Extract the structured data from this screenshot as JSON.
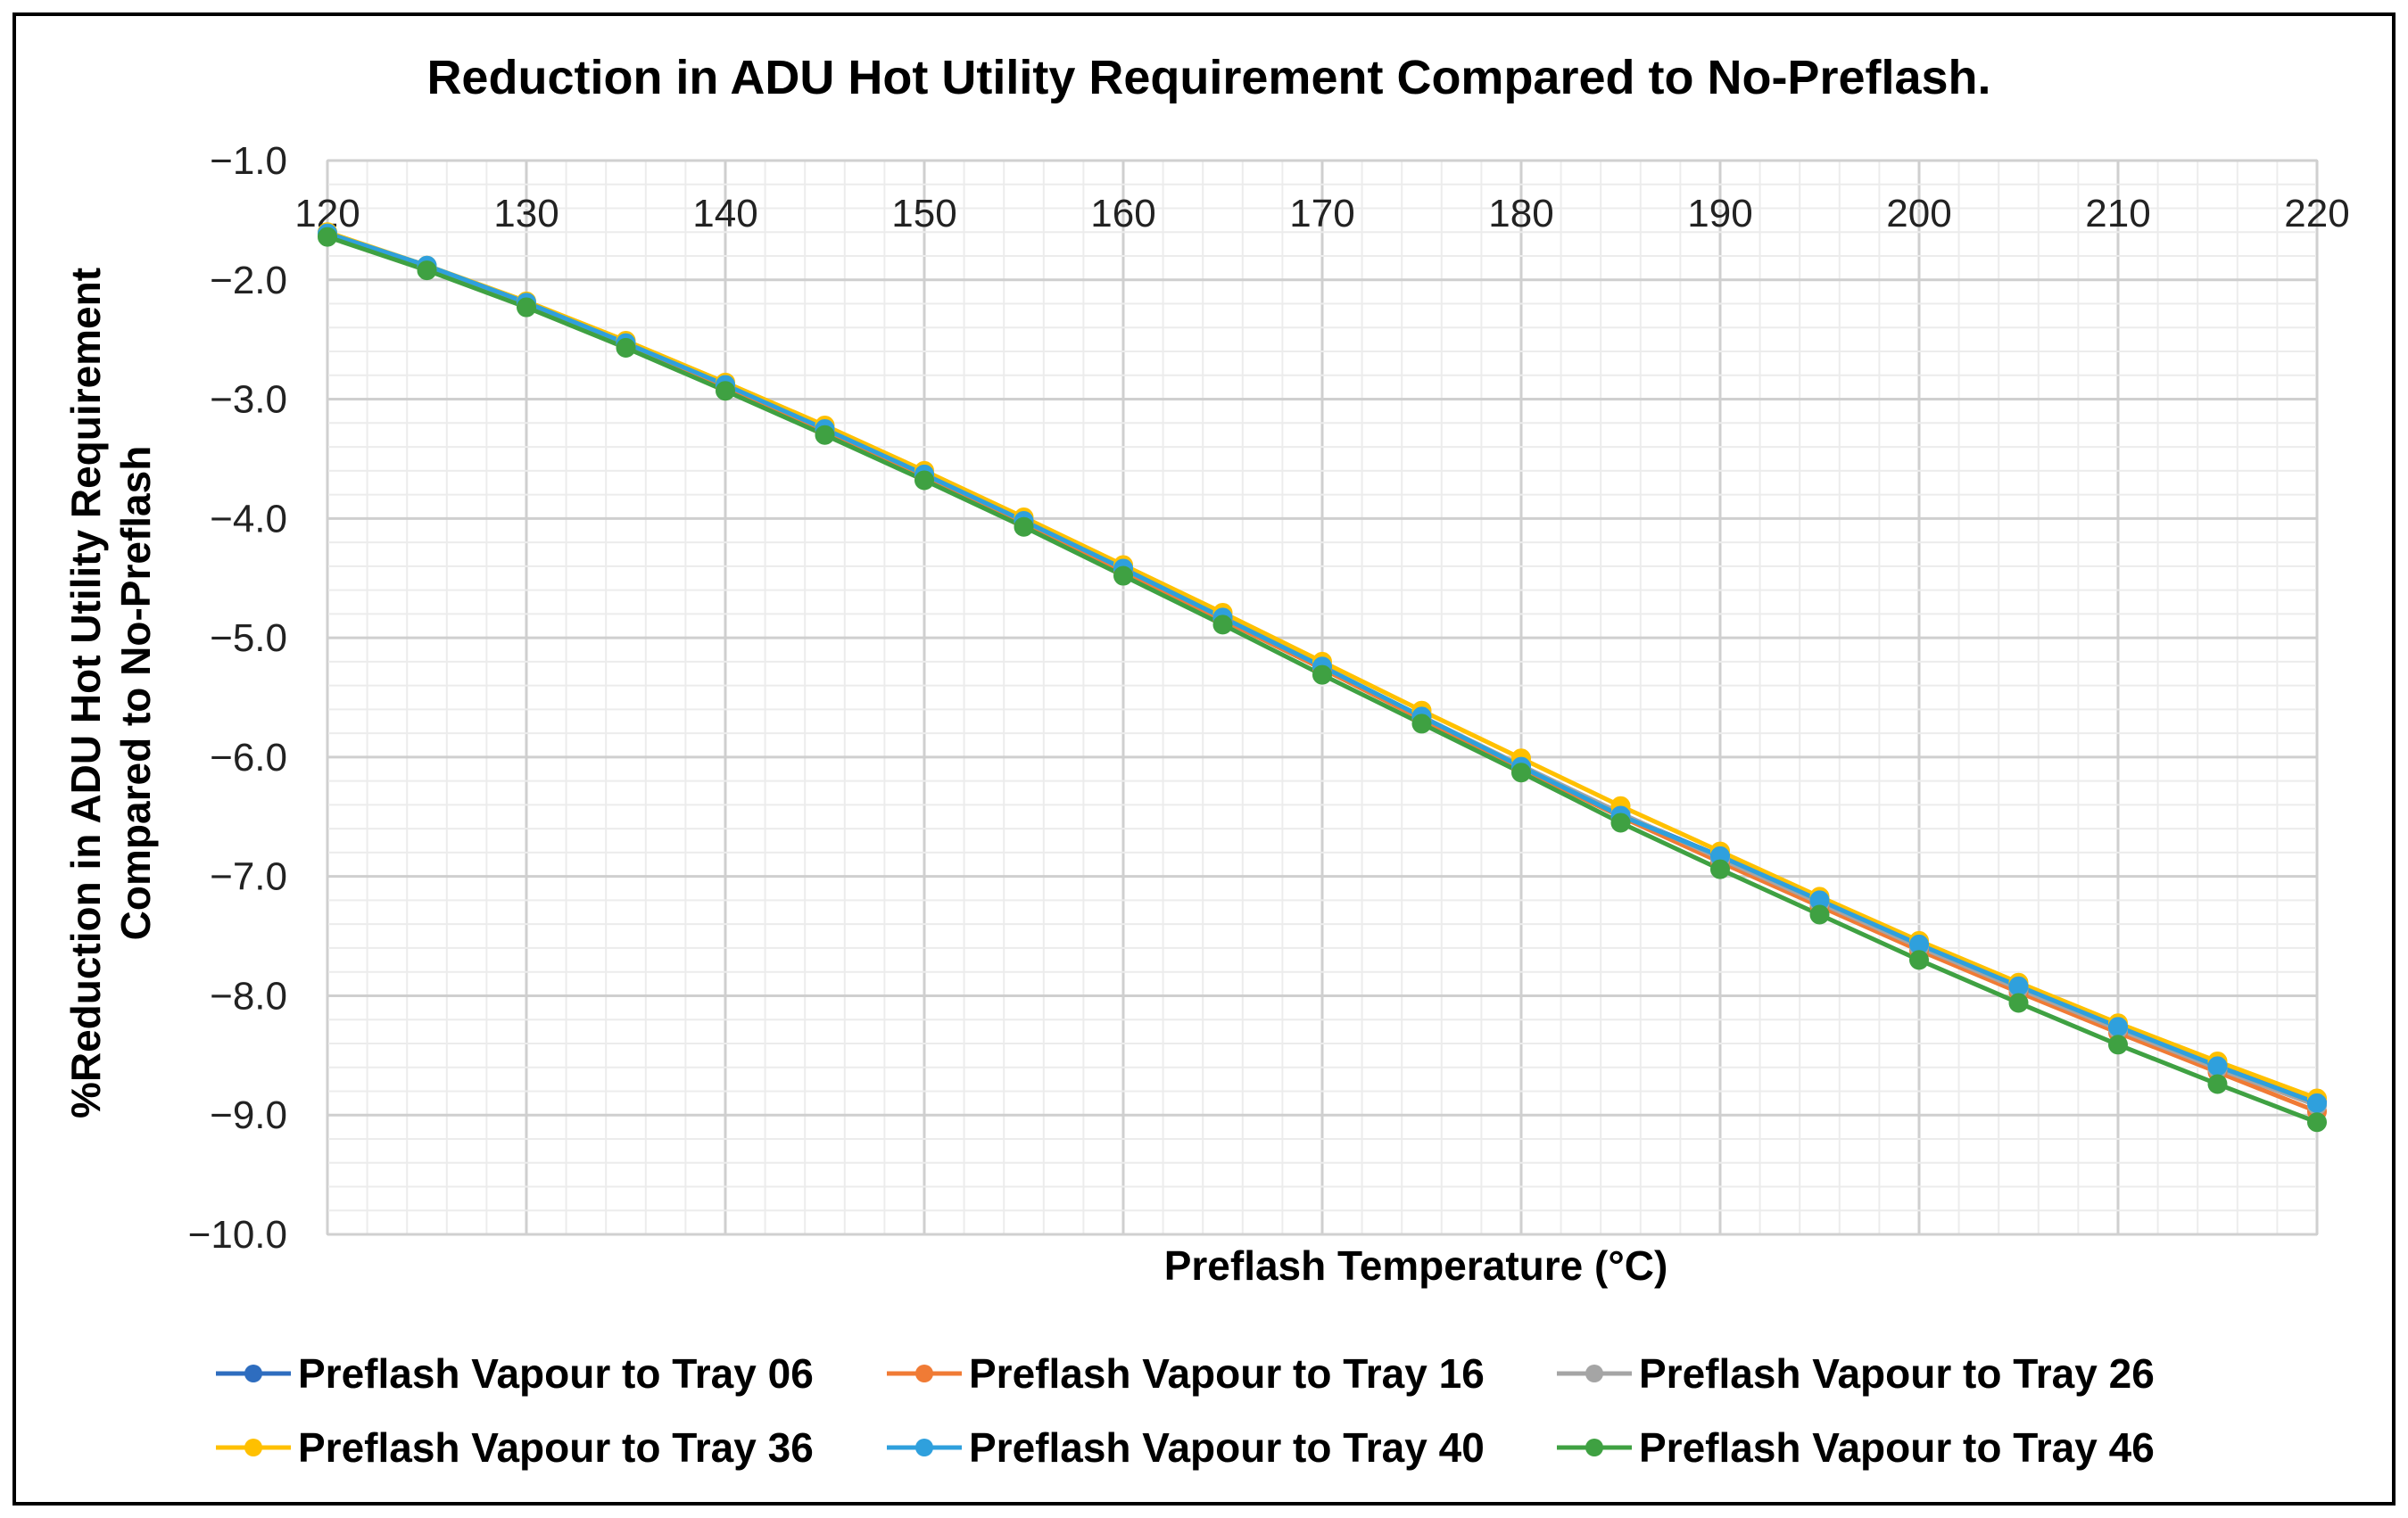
{
  "chart_data": {
    "type": "line",
    "title": "Reduction in ADU Hot Utility Requirement Compared to No-Preflash.",
    "xlabel": "Preflash Temperature (°C)",
    "ylabel_line1": "%Reduction  in ADU Hot Utility Requirement",
    "ylabel_line2": "Compared to No-Preflash",
    "xlim": [
      120,
      220
    ],
    "ylim": [
      -10,
      -1
    ],
    "x_ticks": [
      120,
      130,
      140,
      150,
      160,
      170,
      180,
      190,
      200,
      210,
      220
    ],
    "y_ticks": [
      "−1.0",
      "−2.0",
      "−3.0",
      "−4.0",
      "−5.0",
      "−6.0",
      "−7.0",
      "−8.0",
      "−9.0",
      "−10.0"
    ],
    "y_tick_values": [
      -1,
      -2,
      -3,
      -4,
      -5,
      -6,
      -7,
      -8,
      -9,
      -10
    ],
    "grid": true,
    "legend_position": "bottom",
    "x": [
      120,
      125,
      130,
      135,
      140,
      145,
      150,
      155,
      160,
      165,
      170,
      175,
      180,
      185,
      190,
      195,
      200,
      205,
      210,
      215,
      220
    ],
    "series": [
      {
        "name": "Preflash Vapour to Tray 06",
        "color": "#2e6dbf",
        "values": [
          -1.62,
          -1.89,
          -2.2,
          -2.54,
          -2.89,
          -3.26,
          -3.64,
          -4.03,
          -4.43,
          -4.84,
          -5.25,
          -5.67,
          -6.08,
          -6.48,
          -6.83,
          -7.2,
          -7.57,
          -7.92,
          -8.26,
          -8.58,
          -8.89
        ]
      },
      {
        "name": "Preflash Vapour to Tray 16",
        "color": "#f07b35",
        "values": [
          -1.62,
          -1.9,
          -2.21,
          -2.55,
          -2.9,
          -3.27,
          -3.65,
          -4.04,
          -4.44,
          -4.85,
          -5.26,
          -5.68,
          -6.1,
          -6.5,
          -6.88,
          -7.25,
          -7.62,
          -7.97,
          -8.31,
          -8.64,
          -8.97
        ]
      },
      {
        "name": "Preflash Vapour to Tray 26",
        "color": "#a5a5a5",
        "values": [
          -1.61,
          -1.89,
          -2.2,
          -2.53,
          -2.88,
          -3.25,
          -3.63,
          -4.02,
          -4.42,
          -4.83,
          -5.24,
          -5.66,
          -6.07,
          -6.47,
          -6.85,
          -7.22,
          -7.59,
          -7.94,
          -8.28,
          -8.61,
          -8.92
        ]
      },
      {
        "name": "Preflash Vapour to Tray 36",
        "color": "#ffc000",
        "values": [
          -1.6,
          -1.88,
          -2.18,
          -2.51,
          -2.86,
          -3.22,
          -3.6,
          -3.99,
          -4.39,
          -4.79,
          -5.2,
          -5.61,
          -6.01,
          -6.41,
          -6.79,
          -7.17,
          -7.54,
          -7.89,
          -8.23,
          -8.55,
          -8.86
        ]
      },
      {
        "name": "Preflash Vapour to Tray 40",
        "color": "#2fa0dd",
        "values": [
          -1.61,
          -1.88,
          -2.19,
          -2.53,
          -2.88,
          -3.25,
          -3.63,
          -4.02,
          -4.42,
          -4.83,
          -5.24,
          -5.66,
          -6.08,
          -6.49,
          -6.83,
          -7.2,
          -7.57,
          -7.92,
          -8.26,
          -8.59,
          -8.9
        ]
      },
      {
        "name": "Preflash Vapour to Tray 46",
        "color": "#3fa142",
        "values": [
          -1.64,
          -1.92,
          -2.23,
          -2.57,
          -2.93,
          -3.3,
          -3.68,
          -4.07,
          -4.48,
          -4.89,
          -5.31,
          -5.72,
          -6.13,
          -6.55,
          -6.94,
          -7.32,
          -7.7,
          -8.06,
          -8.41,
          -8.74,
          -9.06
        ]
      }
    ]
  }
}
